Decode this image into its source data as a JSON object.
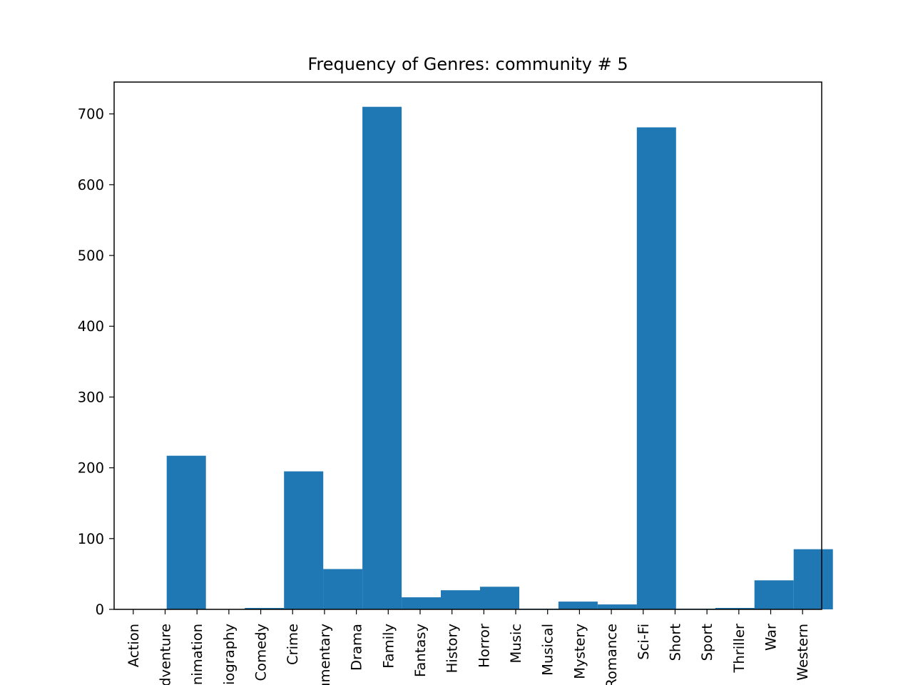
{
  "chart_data": {
    "type": "bar",
    "title": "Frequency of Genres: community # 5",
    "xlabel": "",
    "ylabel": "",
    "ylim": [
      0,
      745
    ],
    "yticks": [
      0,
      100,
      200,
      300,
      400,
      500,
      600,
      700
    ],
    "categories": [
      "Action",
      "Adventure",
      "Animation",
      "Biography",
      "Comedy",
      "Crime",
      "Documentary",
      "Drama",
      "Family",
      "Fantasy",
      "History",
      "Horror",
      "Music",
      "Musical",
      "Mystery",
      "Romance",
      "Sci-Fi",
      "Short",
      "Sport",
      "Thriller",
      "War",
      "Western"
    ],
    "bars": [
      {
        "start": 0.0,
        "end": 1.23,
        "value": 0
      },
      {
        "start": 1.05,
        "end": 2.28,
        "value": 217
      },
      {
        "start": 2.1,
        "end": 3.33,
        "value": 0
      },
      {
        "start": 3.5,
        "end": 4.73,
        "value": 2
      },
      {
        "start": 4.73,
        "end": 5.96,
        "value": 195
      },
      {
        "start": 5.96,
        "end": 7.19,
        "value": 57
      },
      {
        "start": 7.19,
        "end": 8.42,
        "value": 710
      },
      {
        "start": 8.42,
        "end": 9.65,
        "value": 17
      },
      {
        "start": 9.65,
        "end": 10.88,
        "value": 27
      },
      {
        "start": 10.88,
        "end": 12.11,
        "value": 32
      },
      {
        "start": 12.11,
        "end": 13.34,
        "value": 1
      },
      {
        "start": 13.34,
        "end": 14.57,
        "value": 11
      },
      {
        "start": 14.57,
        "end": 15.8,
        "value": 7
      },
      {
        "start": 15.8,
        "end": 17.03,
        "value": 681
      },
      {
        "start": 17.03,
        "end": 18.26,
        "value": 1
      },
      {
        "start": 18.26,
        "end": 19.49,
        "value": 2
      },
      {
        "start": 19.49,
        "end": 20.72,
        "value": 41
      },
      {
        "start": 20.72,
        "end": 21.95,
        "value": 85
      }
    ],
    "colors": {
      "bar": "#1f77b4",
      "axes": "#000000",
      "background": "#ffffff"
    },
    "grid": false,
    "legend": "none"
  }
}
